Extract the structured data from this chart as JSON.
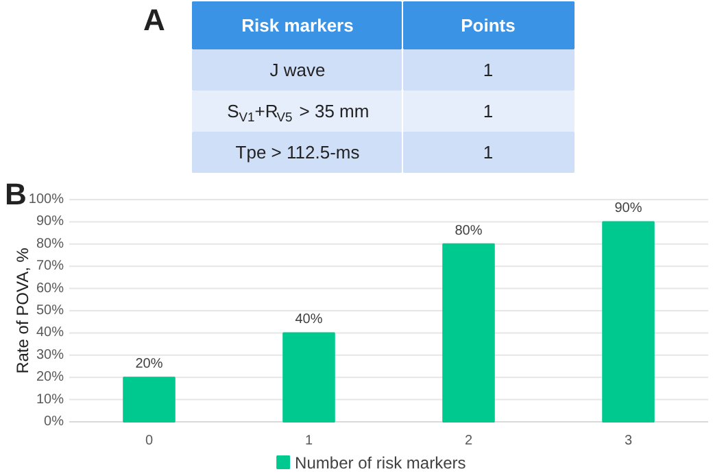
{
  "chart_data": [
    {
      "type": "other",
      "title": "A",
      "xlabel": "Risk markers",
      "ylabel": "Points",
      "categories": [
        "J wave",
        "S$_{V1}$+R$_{V5}$ > 35 mm",
        "Tpe > 112.5-ms"
      ],
      "values": [
        1,
        1,
        1
      ],
      "data_labels": true
    },
    {
      "type": "bar",
      "title": "B",
      "ylabel": "Rate of POVA, %",
      "categories": [
        "0",
        "1",
        "2",
        "3"
      ],
      "series": [
        {
          "name": "Number of risk markers",
          "color": "#00c98f",
          "values": [
            20,
            40,
            80,
            90
          ],
          "value_labels": [
            "20%",
            "40%",
            "80%",
            "90%"
          ]
        }
      ],
      "ylim": [
        0,
        100
      ],
      "yticks": [
        {
          "value": 0,
          "label": "0%"
        },
        {
          "value": 10,
          "label": "10%"
        },
        {
          "value": 20,
          "label": "20%"
        },
        {
          "value": 30,
          "label": "30%"
        },
        {
          "value": 40,
          "label": "40%"
        },
        {
          "value": 50,
          "label": "50%"
        },
        {
          "value": 60,
          "label": "60%"
        },
        {
          "value": 70,
          "label": "70%"
        },
        {
          "value": 80,
          "label": "80%"
        },
        {
          "value": 90,
          "label": "90%"
        },
        {
          "value": 100,
          "label": "100%"
        }
      ],
      "grid": "y",
      "legend": "bottom"
    }
  ]
}
